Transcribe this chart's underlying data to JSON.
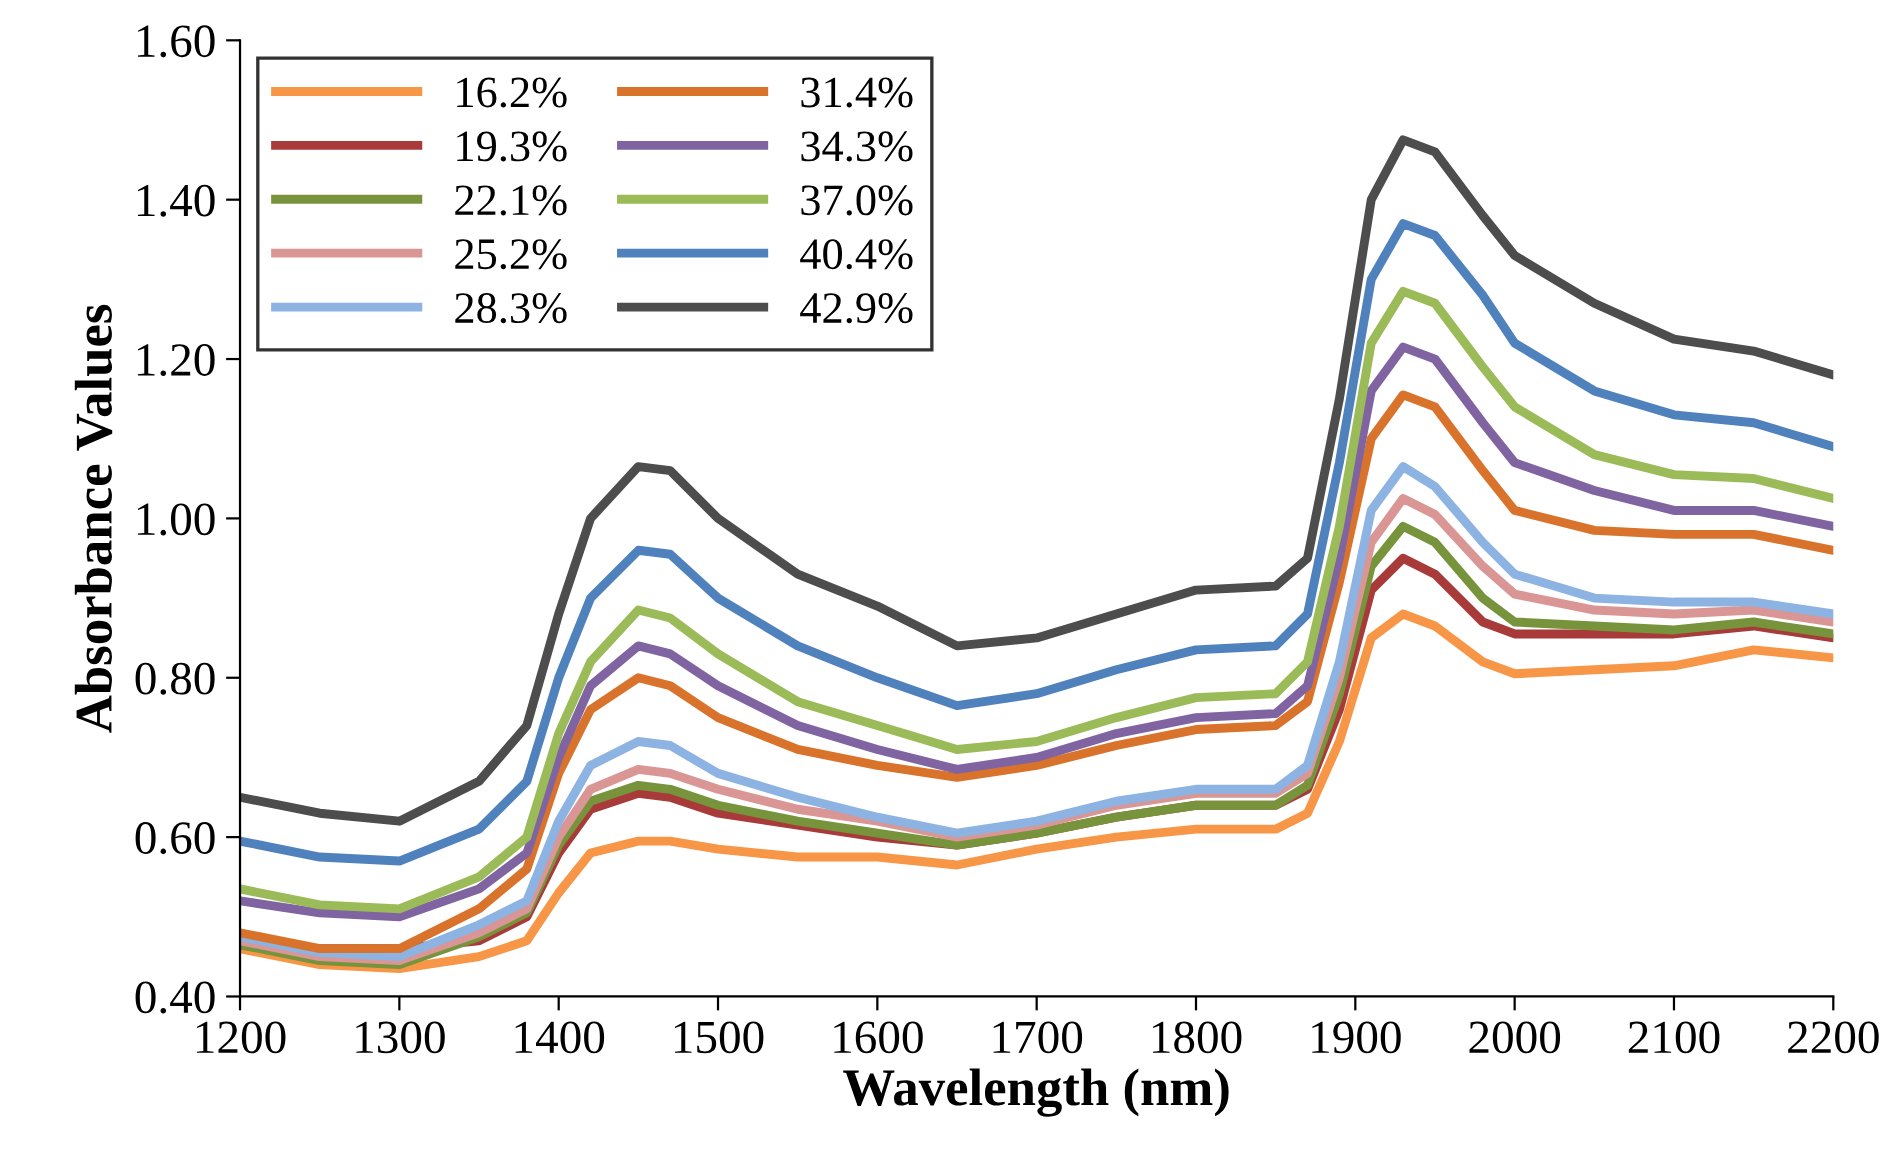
{
  "chart_data": {
    "type": "line",
    "xlabel": "Wavelength (nm)",
    "ylabel": "Absorbance Values",
    "x": [
      1200,
      1250,
      1300,
      1350,
      1380,
      1400,
      1420,
      1450,
      1470,
      1500,
      1550,
      1600,
      1650,
      1700,
      1750,
      1800,
      1850,
      1870,
      1890,
      1910,
      1930,
      1950,
      1980,
      2000,
      2050,
      2100,
      2150,
      2200
    ],
    "xlim": [
      1200,
      2200
    ],
    "xticks": [
      1200,
      1300,
      1400,
      1500,
      1600,
      1700,
      1800,
      1900,
      2000,
      2100,
      2200
    ],
    "ylim": [
      0.4,
      1.6
    ],
    "yticks": [
      {
        "value": 0.4,
        "label": "0.40"
      },
      {
        "value": 0.6,
        "label": "0.60"
      },
      {
        "value": 0.8,
        "label": "0.80"
      },
      {
        "value": 1.0,
        "label": "1.00"
      },
      {
        "value": 1.2,
        "label": "1.20"
      },
      {
        "value": 1.4,
        "label": "1.40"
      },
      {
        "value": 1.6,
        "label": "1.60"
      }
    ],
    "grid": false,
    "legend": "top left",
    "marker": "none",
    "line_style": "solid",
    "series": [
      {
        "name": "16.2%",
        "color": "#f79646",
        "values": [
          0.46,
          0.44,
          0.435,
          0.45,
          0.47,
          0.53,
          0.58,
          0.595,
          0.595,
          0.585,
          0.575,
          0.575,
          0.565,
          0.585,
          0.6,
          0.61,
          0.61,
          0.63,
          0.72,
          0.85,
          0.88,
          0.865,
          0.82,
          0.805,
          0.81,
          0.815,
          0.835,
          0.825
        ]
      },
      {
        "name": "19.3%",
        "color": "#a83a3a",
        "values": [
          0.465,
          0.46,
          0.46,
          0.47,
          0.5,
          0.58,
          0.635,
          0.655,
          0.65,
          0.63,
          0.615,
          0.6,
          0.59,
          0.605,
          0.625,
          0.64,
          0.64,
          0.66,
          0.76,
          0.91,
          0.95,
          0.93,
          0.87,
          0.855,
          0.855,
          0.855,
          0.865,
          0.85
        ]
      },
      {
        "name": "22.1%",
        "color": "#77933c",
        "values": [
          0.465,
          0.445,
          0.44,
          0.475,
          0.505,
          0.59,
          0.645,
          0.665,
          0.66,
          0.64,
          0.62,
          0.605,
          0.59,
          0.605,
          0.625,
          0.64,
          0.64,
          0.665,
          0.78,
          0.94,
          0.99,
          0.97,
          0.9,
          0.87,
          0.865,
          0.86,
          0.87,
          0.855
        ]
      },
      {
        "name": "25.2%",
        "color": "#d99694",
        "values": [
          0.47,
          0.45,
          0.445,
          0.48,
          0.51,
          0.6,
          0.66,
          0.685,
          0.68,
          0.66,
          0.635,
          0.62,
          0.6,
          0.615,
          0.64,
          0.655,
          0.655,
          0.68,
          0.8,
          0.97,
          1.025,
          1.005,
          0.94,
          0.905,
          0.885,
          0.88,
          0.885,
          0.87
        ]
      },
      {
        "name": "28.3%",
        "color": "#8db3e2",
        "values": [
          0.475,
          0.455,
          0.45,
          0.49,
          0.52,
          0.62,
          0.69,
          0.72,
          0.715,
          0.68,
          0.65,
          0.625,
          0.605,
          0.62,
          0.645,
          0.66,
          0.66,
          0.69,
          0.82,
          1.01,
          1.065,
          1.04,
          0.97,
          0.93,
          0.9,
          0.895,
          0.895,
          0.88
        ]
      },
      {
        "name": "31.4%",
        "color": "#d9732c",
        "values": [
          0.48,
          0.46,
          0.46,
          0.51,
          0.56,
          0.68,
          0.76,
          0.8,
          0.79,
          0.75,
          0.71,
          0.69,
          0.675,
          0.69,
          0.715,
          0.735,
          0.74,
          0.77,
          0.92,
          1.1,
          1.155,
          1.14,
          1.06,
          1.01,
          0.985,
          0.98,
          0.98,
          0.96
        ]
      },
      {
        "name": "34.3%",
        "color": "#8064a2",
        "values": [
          0.52,
          0.505,
          0.5,
          0.535,
          0.58,
          0.7,
          0.79,
          0.84,
          0.83,
          0.79,
          0.74,
          0.71,
          0.685,
          0.7,
          0.73,
          0.75,
          0.755,
          0.79,
          0.95,
          1.16,
          1.215,
          1.2,
          1.12,
          1.07,
          1.035,
          1.01,
          1.01,
          0.99
        ]
      },
      {
        "name": "37.0%",
        "color": "#9bbb59",
        "values": [
          0.535,
          0.515,
          0.51,
          0.55,
          0.6,
          0.73,
          0.82,
          0.885,
          0.875,
          0.83,
          0.77,
          0.74,
          0.71,
          0.72,
          0.75,
          0.775,
          0.78,
          0.82,
          0.99,
          1.22,
          1.285,
          1.27,
          1.19,
          1.14,
          1.08,
          1.055,
          1.05,
          1.025
        ]
      },
      {
        "name": "40.4%",
        "color": "#4f81bd",
        "values": [
          0.595,
          0.575,
          0.57,
          0.61,
          0.67,
          0.8,
          0.9,
          0.96,
          0.955,
          0.9,
          0.84,
          0.8,
          0.765,
          0.78,
          0.81,
          0.835,
          0.84,
          0.88,
          1.07,
          1.3,
          1.37,
          1.355,
          1.28,
          1.22,
          1.16,
          1.13,
          1.12,
          1.09
        ]
      },
      {
        "name": "42.9%",
        "color": "#4d4d4d",
        "values": [
          0.65,
          0.63,
          0.62,
          0.67,
          0.74,
          0.88,
          1.0,
          1.065,
          1.06,
          1.0,
          0.93,
          0.89,
          0.84,
          0.85,
          0.88,
          0.91,
          0.915,
          0.95,
          1.15,
          1.4,
          1.475,
          1.46,
          1.38,
          1.33,
          1.27,
          1.225,
          1.21,
          1.18
        ]
      }
    ]
  }
}
